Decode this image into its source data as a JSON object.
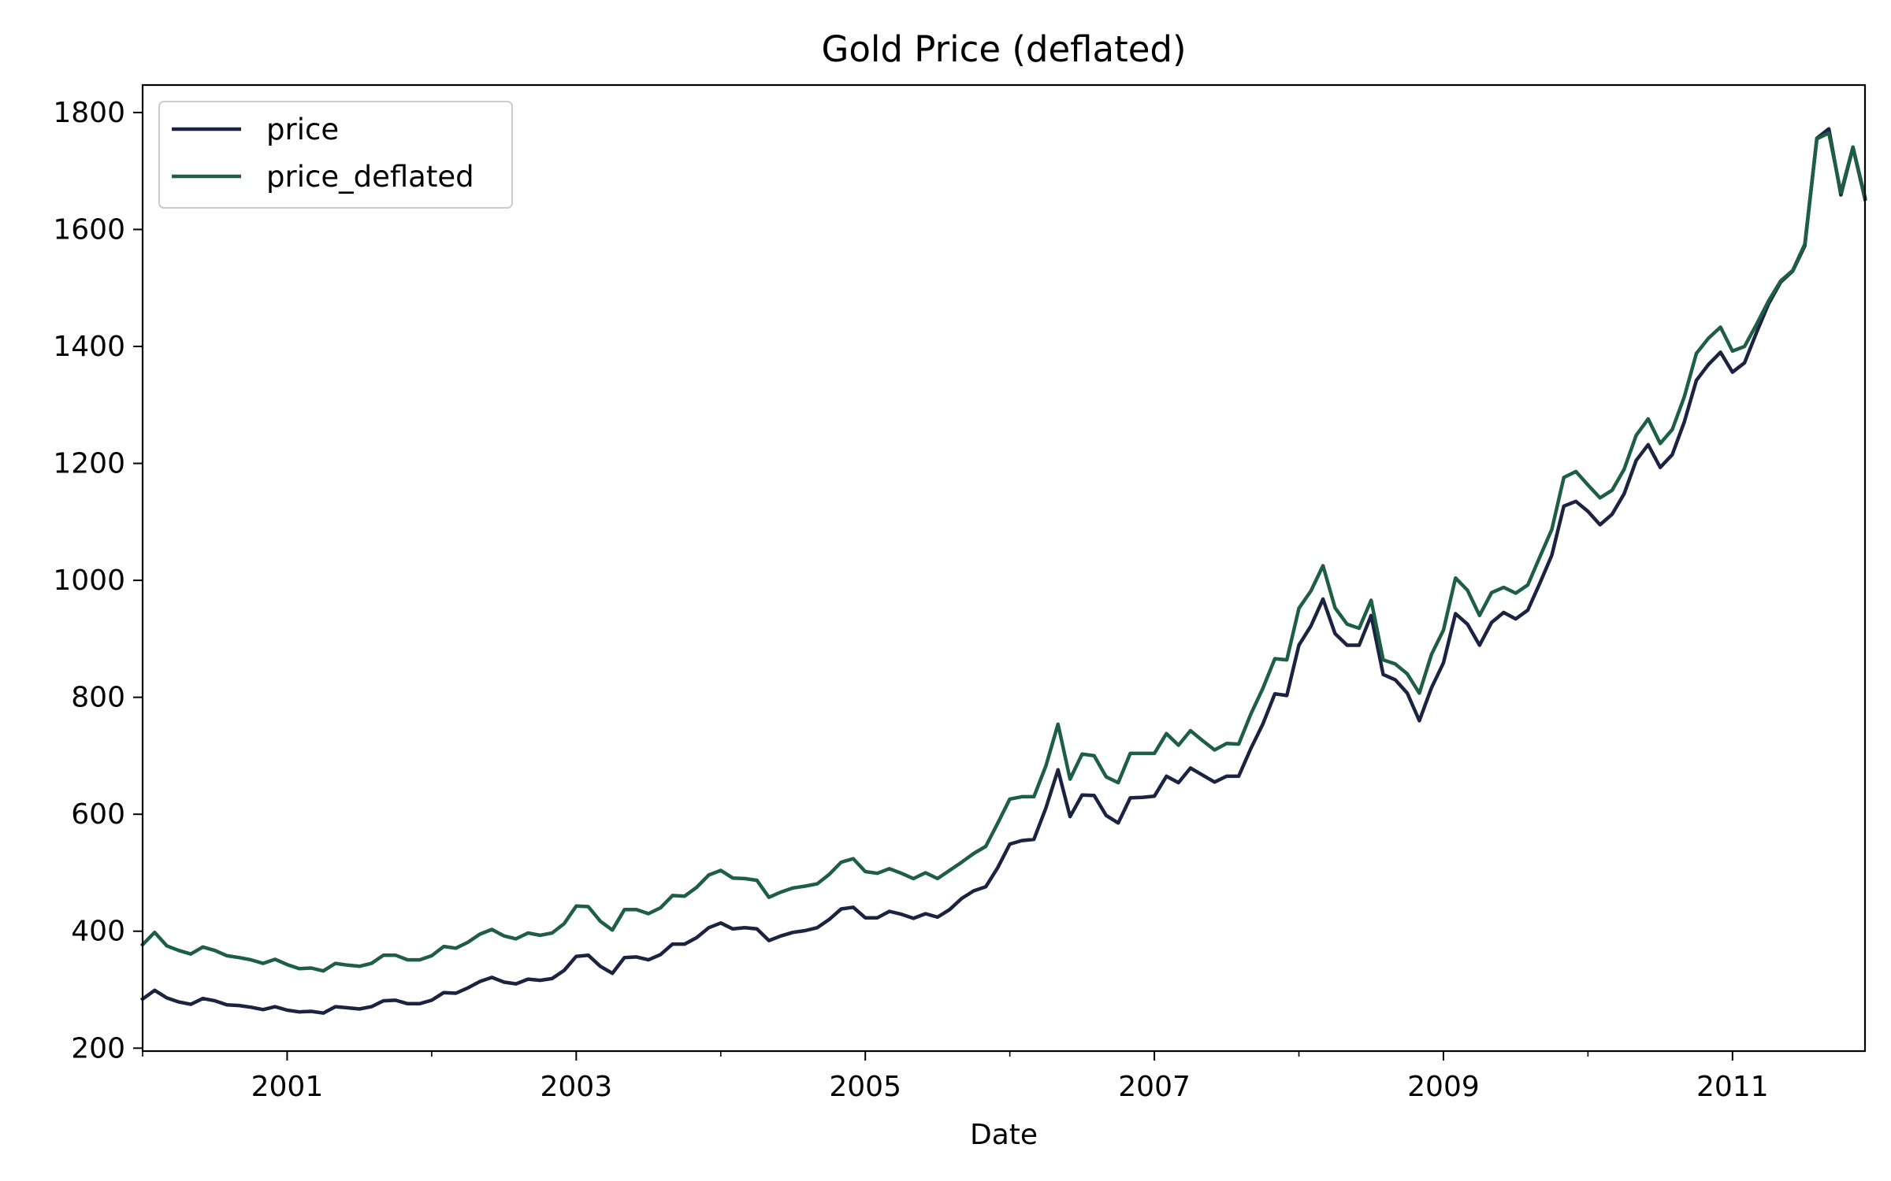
{
  "chart_data": {
    "type": "line",
    "title": "Gold Price (deflated)",
    "xlabel": "Date",
    "ylabel": "",
    "x_start": "2000-01",
    "x_end": "2011-12",
    "x_frequency": "monthly",
    "xlim": [
      "2000-01",
      "2011-12"
    ],
    "ylim": [
      195,
      1847
    ],
    "y_ticks": [
      200,
      400,
      600,
      800,
      1000,
      1200,
      1400,
      1600,
      1800
    ],
    "x_ticks": [
      "2001",
      "2003",
      "2005",
      "2007",
      "2009",
      "2011"
    ],
    "legend_position": "top-left",
    "grid": false,
    "series": [
      {
        "name": "price",
        "color": "#1c2340",
        "values": [
          284,
          299,
          286,
          279,
          275,
          285,
          281,
          274,
          273,
          270,
          266,
          271,
          265,
          262,
          263,
          260,
          271,
          269,
          267,
          271,
          281,
          282,
          276,
          276,
          282,
          295,
          294,
          303,
          314,
          321,
          313,
          310,
          318,
          316,
          319,
          333,
          357,
          359,
          340,
          328,
          355,
          356,
          351,
          360,
          378,
          378,
          389,
          406,
          414,
          404,
          406,
          404,
          384,
          392,
          398,
          401,
          406,
          420,
          438,
          441,
          423,
          423,
          434,
          429,
          422,
          430,
          424,
          437,
          456,
          469,
          476,
          509,
          549,
          555,
          557,
          611,
          676,
          596,
          633,
          632,
          598,
          585,
          628,
          629,
          631,
          665,
          654,
          679,
          667,
          655,
          665,
          665,
          712,
          754,
          806,
          803,
          889,
          922,
          968,
          909,
          889,
          889,
          940,
          839,
          830,
          807,
          760,
          816,
          859,
          943,
          925,
          889,
          928,
          945,
          934,
          949,
          995,
          1043,
          1127,
          1135,
          1118,
          1095,
          1113,
          1148,
          1205,
          1232,
          1193,
          1215,
          1271,
          1342,
          1369,
          1390,
          1356,
          1372,
          1424,
          1473,
          1510,
          1529,
          1572,
          1756,
          1772,
          1659,
          1740,
          1652
        ]
      },
      {
        "name": "price_deflated",
        "color": "#1d5e44",
        "values": [
          377,
          398,
          375,
          367,
          361,
          373,
          367,
          358,
          355,
          351,
          345,
          352,
          343,
          336,
          337,
          332,
          345,
          342,
          340,
          345,
          359,
          359,
          351,
          351,
          358,
          374,
          371,
          381,
          395,
          403,
          392,
          387,
          397,
          393,
          397,
          413,
          443,
          442,
          417,
          402,
          437,
          437,
          430,
          440,
          461,
          460,
          475,
          496,
          504,
          491,
          490,
          487,
          458,
          467,
          474,
          477,
          481,
          497,
          518,
          524,
          502,
          499,
          507,
          499,
          490,
          500,
          490,
          504,
          518,
          533,
          545,
          585,
          626,
          630,
          630,
          683,
          754,
          660,
          703,
          700,
          664,
          654,
          704,
          704,
          704,
          738,
          718,
          743,
          726,
          710,
          721,
          720,
          771,
          815,
          866,
          864,
          952,
          982,
          1025,
          953,
          925,
          918,
          966,
          864,
          857,
          840,
          807,
          873,
          915,
          1004,
          983,
          940,
          979,
          988,
          978,
          992,
          1040,
          1087,
          1176,
          1186,
          1163,
          1141,
          1154,
          1190,
          1248,
          1276,
          1234,
          1258,
          1314,
          1388,
          1414,
          1433,
          1392,
          1400,
          1438,
          1478,
          1512,
          1530,
          1575,
          1755,
          1765,
          1663,
          1741,
          1655
        ]
      }
    ]
  }
}
